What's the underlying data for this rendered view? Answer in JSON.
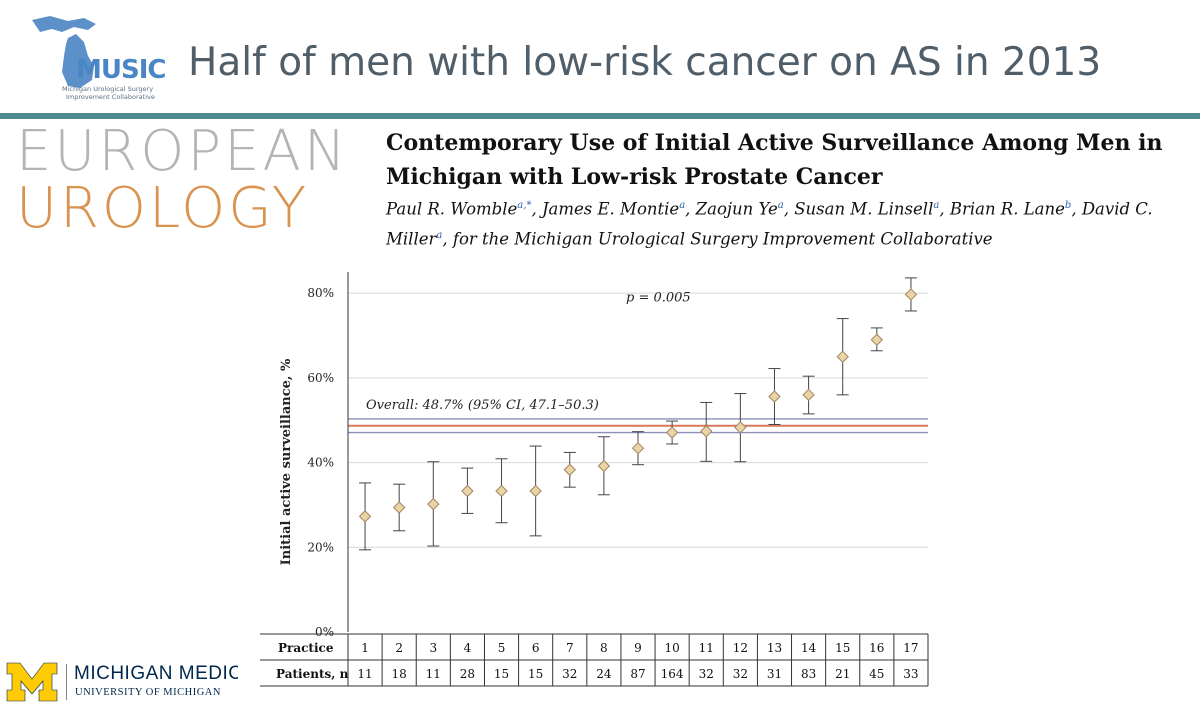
{
  "slide": {
    "title": "Half of men with low-risk cancer on AS in 2013"
  },
  "logo": {
    "music_text": "MUSIC",
    "music_subtitle_1": "Michigan Urological Surgery",
    "music_subtitle_2": "Improvement Collaborative",
    "colors": {
      "state": "#5b90c8",
      "text": "#4a86c5"
    }
  },
  "journal": {
    "line1": "EUROPEAN",
    "line2": "UROLOGY"
  },
  "paper": {
    "title": "Contemporary Use of Initial Active Surveillance Among Men in Michigan with Low-risk Prostate Cancer",
    "authors": [
      {
        "name": "Paul R. Womble",
        "aff": "a,*",
        "sep": ", "
      },
      {
        "name": "James E. Montie",
        "aff": "a",
        "sep": ", "
      },
      {
        "name": "Zaojun Ye",
        "aff": "a",
        "sep": ", "
      },
      {
        "name": "Susan M. Linsell",
        "aff": "a",
        "sep": ", "
      },
      {
        "name": "Brian R. Lane",
        "aff": "b",
        "sep": ", "
      },
      {
        "name": "David C. Miller",
        "aff": "a",
        "sep": ", "
      }
    ],
    "author_suffix": "for the Michigan Urological Surgery Improvement Collaborative"
  },
  "footer": {
    "org_name": "MICHIGAN MEDICINE",
    "org_sub": "UNIVERSITY OF MICHIGAN",
    "colors": {
      "maize": "#ffcb05",
      "blue": "#00274c"
    }
  },
  "chart_data": {
    "type": "scatter",
    "title": "",
    "xlabel": "Practice",
    "ylabel": "Initial active surveillance, %",
    "ylim": [
      0,
      85
    ],
    "yticks": [
      0,
      20,
      40,
      60,
      80
    ],
    "ytick_labels": [
      "0%",
      "20%",
      "40%",
      "60%",
      "80%"
    ],
    "grid": true,
    "annotation": "p = 0.005",
    "overall_label": "Overall: 48.7% (95% CI, 47.1–50.3)",
    "overall": {
      "value": 48.7,
      "ci_low": 47.1,
      "ci_high": 50.3
    },
    "table_row_labels": [
      "Practice",
      "Patients, n"
    ],
    "categories": [
      "1",
      "2",
      "3",
      "4",
      "5",
      "6",
      "7",
      "8",
      "9",
      "10",
      "11",
      "12",
      "13",
      "14",
      "15",
      "16",
      "17"
    ],
    "patients": [
      "11",
      "18",
      "11",
      "28",
      "15",
      "15",
      "32",
      "24",
      "87",
      "164",
      "32",
      "32",
      "31",
      "83",
      "21",
      "45",
      "33"
    ],
    "values": [
      27.3,
      29.4,
      30.2,
      33.3,
      33.3,
      33.3,
      38.3,
      39.2,
      43.4,
      47.1,
      47.4,
      48.3,
      55.6,
      56.0,
      65.0,
      69.0,
      79.7
    ],
    "lower": [
      19.4,
      23.9,
      20.3,
      28.0,
      25.8,
      22.7,
      34.2,
      32.4,
      39.5,
      44.4,
      40.3,
      40.2,
      49.0,
      51.5,
      56.0,
      66.4,
      75.8
    ],
    "upper": [
      35.2,
      34.9,
      40.2,
      38.7,
      40.9,
      43.9,
      42.4,
      46.1,
      47.3,
      49.8,
      54.2,
      56.3,
      62.2,
      60.4,
      74.0,
      71.8,
      83.6
    ],
    "colors": {
      "marker_fill": "#ead3a6",
      "marker_stroke": "#a08560",
      "overall_line": "#d9785a",
      "ci_line": "#8a8fb8",
      "grid": "#d8d8d8"
    }
  }
}
